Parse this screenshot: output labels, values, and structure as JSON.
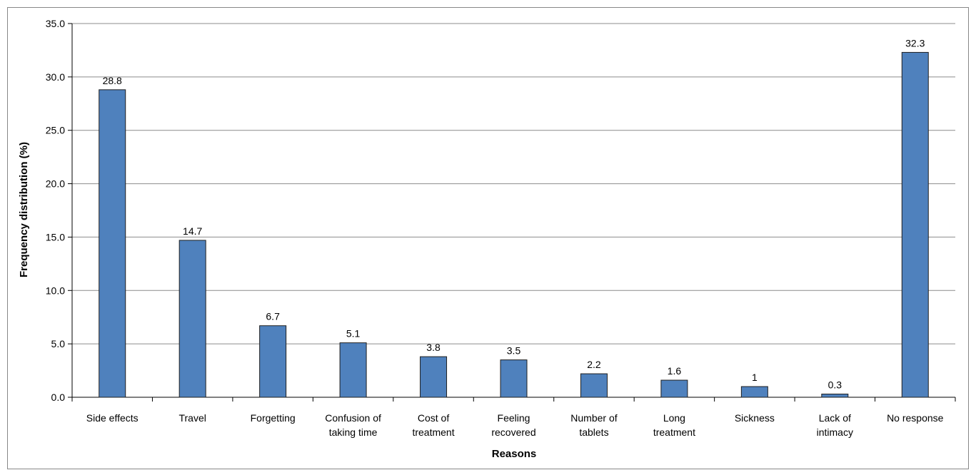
{
  "chart_data": {
    "type": "bar",
    "title": "",
    "xlabel": "Reasons",
    "ylabel": "Frequency distribution (%)",
    "ylim": [
      0,
      35
    ],
    "yticks": [
      "0.0",
      "5.0",
      "10.0",
      "15.0",
      "20.0",
      "25.0",
      "30.0",
      "35.0"
    ],
    "grid": true,
    "categories": [
      [
        "Side effects"
      ],
      [
        "Travel"
      ],
      [
        "Forgetting"
      ],
      [
        "Confusion of",
        "taking time"
      ],
      [
        "Cost of",
        "treatment"
      ],
      [
        "Feeling",
        "recovered"
      ],
      [
        "Number of",
        "tablets"
      ],
      [
        "Long",
        "treatment"
      ],
      [
        "Sickness"
      ],
      [
        "Lack of",
        "intimacy"
      ],
      [
        "No response"
      ]
    ],
    "values": [
      28.8,
      14.7,
      6.7,
      5.1,
      3.8,
      3.5,
      2.2,
      1.6,
      1,
      0.3,
      32.3
    ],
    "data_labels": [
      "28.8",
      "14.7",
      "6.7",
      "5.1",
      "3.8",
      "3.5",
      "2.2",
      "1.6",
      "1",
      "0.3",
      "32.3"
    ],
    "bar_color": "#4f81bd",
    "bar_border": "#1f1f1f",
    "grid_color": "#8c8c8c"
  }
}
